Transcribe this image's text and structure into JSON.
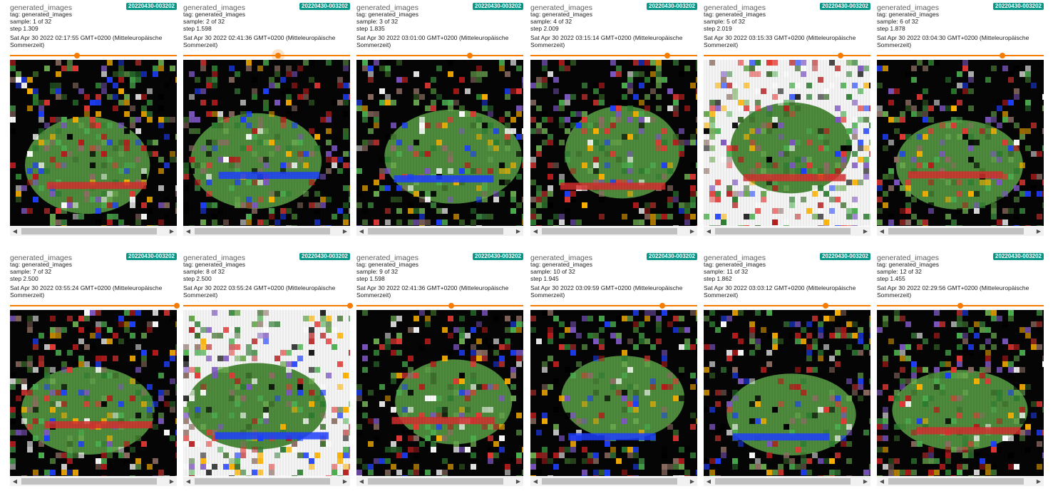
{
  "cards": [
    {
      "title": "generated_images",
      "run": "20220430-003202",
      "tag": "tag: generated_images",
      "sample": "sample: 1 of 32",
      "step": "step 1.309",
      "time": "Sat Apr 30 2022 02:17:55 GMT+0200 (Mitteleuropäische Sommerzeit)",
      "slider": 0.4,
      "focused": false
    },
    {
      "title": "generated_images",
      "run": "20220430-003202",
      "tag": "tag: generated_images",
      "sample": "sample: 2 of 32",
      "step": "step 1.598",
      "time": "Sat Apr 30 2022 02:41:36 GMT+0200 (Mitteleuropäische Sommerzeit)",
      "slider": 0.57,
      "focused": true
    },
    {
      "title": "generated_images",
      "run": "20220430-003202",
      "tag": "tag: generated_images",
      "sample": "sample: 3 of 32",
      "step": "step 1.835",
      "time": "Sat Apr 30 2022 03:01:00 GMT+0200 (Mitteleuropäische Sommerzeit)",
      "slider": 0.68,
      "focused": false
    },
    {
      "title": "generated_images",
      "run": "20220430-003202",
      "tag": "tag: generated_images",
      "sample": "sample: 4 of 32",
      "step": "step 2.009",
      "time": "Sat Apr 30 2022 03:15:14 GMT+0200 (Mitteleuropäische Sommerzeit)",
      "slider": 0.82,
      "focused": false
    },
    {
      "title": "generated_images",
      "run": "20220430-003202",
      "tag": "tag: generated_images",
      "sample": "sample: 5 of 32",
      "step": "step 2.019",
      "time": "Sat Apr 30 2022 03:15:33 GMT+0200 (Mitteleuropäische Sommerzeit)",
      "slider": 0.82,
      "focused": false
    },
    {
      "title": "generated_images",
      "run": "20220430-003202",
      "tag": "tag: generated_images",
      "sample": "sample: 6 of 32",
      "step": "step 1.878",
      "time": "Sat Apr 30 2022 03:04:30 GMT+0200 (Mitteleuropäische Sommerzeit)",
      "slider": 0.75,
      "focused": false
    },
    {
      "title": "generated_images",
      "run": "20220430-003202",
      "tag": "tag: generated_images",
      "sample": "sample: 7 of 32",
      "step": "step 2.500",
      "time": "Sat Apr 30 2022 03:55:24 GMT+0200 (Mitteleuropäische Sommerzeit)",
      "slider": 1.0,
      "focused": false
    },
    {
      "title": "generated_images",
      "run": "20220430-003202",
      "tag": "tag: generated_images",
      "sample": "sample: 8 of 32",
      "step": "step 2.500",
      "time": "Sat Apr 30 2022 03:55:24 GMT+0200 (Mitteleuropäische Sommerzeit)",
      "slider": 1.0,
      "focused": false
    },
    {
      "title": "generated_images",
      "run": "20220430-003202",
      "tag": "tag: generated_images",
      "sample": "sample: 9 of 32",
      "step": "step 1.598",
      "time": "Sat Apr 30 2022 02:41:36 GMT+0200 (Mitteleuropäische Sommerzeit)",
      "slider": 0.57,
      "focused": false
    },
    {
      "title": "generated_images",
      "run": "20220430-003202",
      "tag": "tag: generated_images",
      "sample": "sample: 10 of 32",
      "step": "step 1.945",
      "time": "Sat Apr 30 2022 03:09:59 GMT+0200 (Mitteleuropäische Sommerzeit)",
      "slider": 0.79,
      "focused": false
    },
    {
      "title": "generated_images",
      "run": "20220430-003202",
      "tag": "tag: generated_images",
      "sample": "sample: 11 of 32",
      "step": "step 1.862",
      "time": "Sat Apr 30 2022 03:03:12 GMT+0200 (Mitteleuropäische Sommerzeit)",
      "slider": 0.73,
      "focused": false
    },
    {
      "title": "generated_images",
      "run": "20220430-003202",
      "tag": "tag: generated_images",
      "sample": "sample: 12 of 32",
      "step": "step 1.455",
      "time": "Sat Apr 30 2022 02:29:56 GMT+0200 (Mitteleuropäische Sommerzeit)",
      "slider": 0.5,
      "focused": false
    }
  ],
  "colors": {
    "accent": "#f57c00",
    "badge": "#0a9688",
    "scrollbar_track": "#f1f1f1",
    "scrollbar_thumb": "#c1c1c1"
  },
  "icons": {
    "scroll_left": "◀",
    "scroll_right": "▶"
  }
}
